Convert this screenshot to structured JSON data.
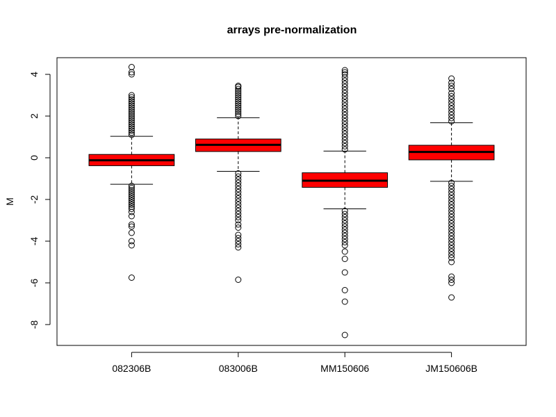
{
  "chart_data": {
    "type": "boxplot",
    "title": "arrays pre-normalization",
    "ylabel": "M",
    "xlabel": "",
    "ylim": [
      -9,
      4.8
    ],
    "yticks": [
      -8,
      -6,
      -4,
      -2,
      0,
      2,
      4
    ],
    "categories": [
      "082306B",
      "083006B",
      "MM150606",
      "JM150606B"
    ],
    "boxes": [
      {
        "name": "082306B",
        "whisker_low": -1.27,
        "q1": -0.38,
        "median": -0.12,
        "q3": 0.16,
        "whisker_high": 1.03,
        "outliers_high": [
          1.1,
          1.2,
          1.3,
          1.4,
          1.5,
          1.6,
          1.7,
          1.8,
          1.9,
          2.0,
          2.1,
          2.2,
          2.3,
          2.4,
          2.5,
          2.6,
          2.7,
          2.8,
          2.9,
          3.0,
          4.0,
          4.1,
          4.35
        ],
        "outliers_low": [
          -1.35,
          -1.45,
          -1.55,
          -1.65,
          -1.75,
          -1.85,
          -1.95,
          -2.05,
          -2.15,
          -2.25,
          -2.35,
          -2.45,
          -2.6,
          -2.8,
          -3.2,
          -3.3,
          -3.6,
          -4.0,
          -4.2,
          -5.75
        ]
      },
      {
        "name": "083006B",
        "whisker_low": -0.65,
        "q1": 0.3,
        "median": 0.62,
        "q3": 0.9,
        "whisker_high": 1.92,
        "outliers_high": [
          2.0,
          2.1,
          2.2,
          2.3,
          2.4,
          2.5,
          2.6,
          2.7,
          2.8,
          2.9,
          3.0,
          3.1,
          3.2,
          3.3,
          3.4,
          3.45
        ],
        "outliers_low": [
          -0.75,
          -0.9,
          -1.05,
          -1.2,
          -1.35,
          -1.5,
          -1.65,
          -1.8,
          -1.95,
          -2.1,
          -2.25,
          -2.4,
          -2.55,
          -2.7,
          -2.85,
          -3.0,
          -3.2,
          -3.35,
          -3.7,
          -3.85,
          -4.0,
          -4.15,
          -4.3,
          -5.85
        ]
      },
      {
        "name": "MM150606",
        "whisker_low": -2.45,
        "q1": -1.42,
        "median": -1.1,
        "q3": -0.72,
        "whisker_high": 0.32,
        "outliers_high": [
          0.4,
          0.55,
          0.7,
          0.85,
          1.0,
          1.15,
          1.3,
          1.45,
          1.6,
          1.75,
          1.9,
          2.05,
          2.2,
          2.35,
          2.5,
          2.65,
          2.8,
          2.95,
          3.1,
          3.25,
          3.4,
          3.55,
          3.7,
          3.85,
          4.0,
          4.1,
          4.2
        ],
        "outliers_low": [
          -2.55,
          -2.7,
          -2.85,
          -3.0,
          -3.15,
          -3.3,
          -3.45,
          -3.6,
          -3.75,
          -3.9,
          -4.05,
          -4.2,
          -4.5,
          -4.85,
          -5.5,
          -6.35,
          -6.9,
          -8.5
        ]
      },
      {
        "name": "JM150606B",
        "whisker_low": -1.13,
        "q1": -0.1,
        "median": 0.28,
        "q3": 0.6,
        "whisker_high": 1.68,
        "outliers_high": [
          1.75,
          1.9,
          2.05,
          2.2,
          2.35,
          2.5,
          2.65,
          2.8,
          2.95,
          3.1,
          3.3,
          3.45,
          3.6,
          3.8
        ],
        "outliers_low": [
          -1.2,
          -1.35,
          -1.5,
          -1.65,
          -1.8,
          -1.95,
          -2.1,
          -2.25,
          -2.4,
          -2.55,
          -2.7,
          -2.85,
          -3.0,
          -3.15,
          -3.3,
          -3.45,
          -3.6,
          -3.75,
          -3.9,
          -4.05,
          -4.2,
          -4.35,
          -4.5,
          -4.65,
          -4.8,
          -5.0,
          -5.7,
          -5.85,
          -6.0,
          -6.7
        ]
      }
    ],
    "grid": false,
    "colors": {
      "box_fill": "#ff0000",
      "stroke": "#000000",
      "background": "#ffffff"
    }
  }
}
